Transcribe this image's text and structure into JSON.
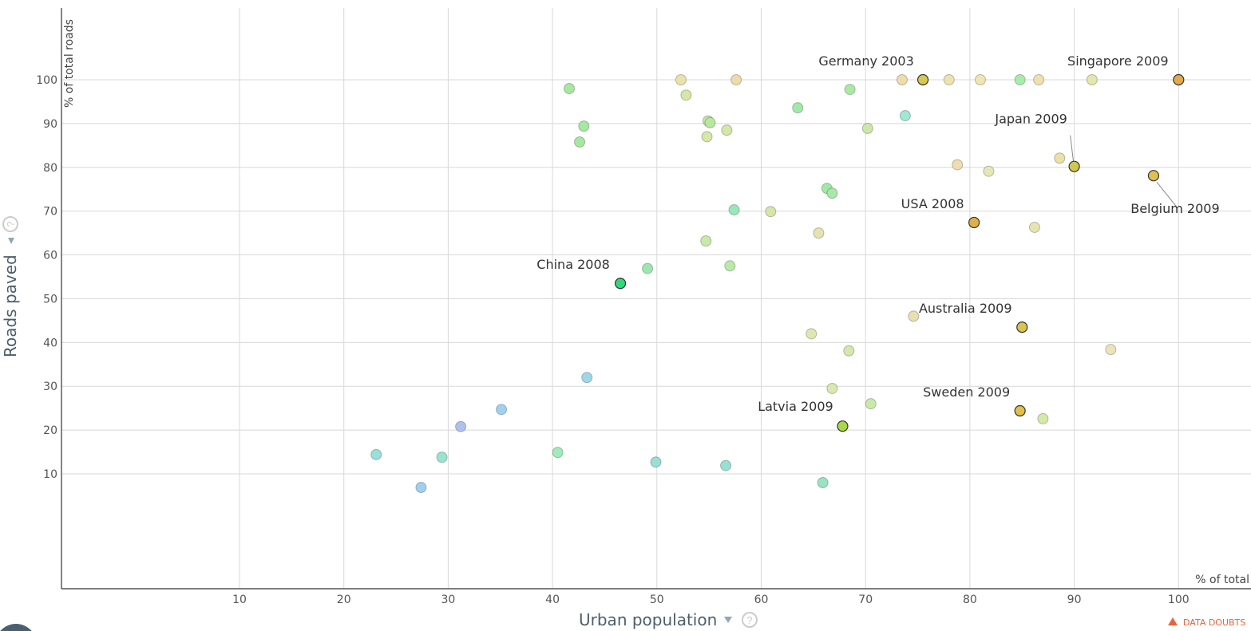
{
  "chart_data": {
    "type": "scatter",
    "xlabel": "Urban population",
    "xunit": "% of total",
    "ylabel": "Roads paved",
    "yunit": "% of total roads",
    "xlim": [
      0,
      106
    ],
    "ylim": [
      -16,
      116
    ],
    "xticks": [
      10,
      20,
      30,
      40,
      50,
      60,
      70,
      80,
      90,
      100
    ],
    "yticks": [
      10,
      20,
      30,
      40,
      50,
      60,
      70,
      80,
      90,
      100
    ],
    "grid": true,
    "data_doubts_label": "DATA DOUBTS",
    "points": [
      {
        "x": 41.6,
        "y": 98.0,
        "color": "#a6e8a0"
      },
      {
        "x": 52.3,
        "y": 100,
        "color": "#e8e4a8"
      },
      {
        "x": 57.6,
        "y": 100,
        "color": "#ecdcaa"
      },
      {
        "x": 52.8,
        "y": 96.5,
        "color": "#d6e6a4"
      },
      {
        "x": 43.0,
        "y": 89.4,
        "color": "#a6e8a0"
      },
      {
        "x": 42.6,
        "y": 85.8,
        "color": "#a6e8a0"
      },
      {
        "x": 54.9,
        "y": 90.6,
        "color": "#c6e8a0"
      },
      {
        "x": 55.1,
        "y": 90.2,
        "color": "#b8e8a0"
      },
      {
        "x": 54.8,
        "y": 87.0,
        "color": "#d4e8a8"
      },
      {
        "x": 56.7,
        "y": 88.5,
        "color": "#d0e8a8"
      },
      {
        "x": 63.5,
        "y": 93.6,
        "color": "#a0eaa8"
      },
      {
        "x": 68.5,
        "y": 97.8,
        "color": "#aaeaa4"
      },
      {
        "x": 70.2,
        "y": 88.9,
        "color": "#cce8a8"
      },
      {
        "x": 73.8,
        "y": 91.8,
        "color": "#9ee8d4"
      },
      {
        "x": 73.5,
        "y": 100,
        "color": "#f0dcaa"
      },
      {
        "x": 75.5,
        "y": 100,
        "color": "#d8c850",
        "label": "Germany 2003"
      },
      {
        "x": 78.0,
        "y": 100,
        "color": "#ece4ac"
      },
      {
        "x": 81.0,
        "y": 100,
        "color": "#eee6b0"
      },
      {
        "x": 84.8,
        "y": 100,
        "color": "#a6ecaa"
      },
      {
        "x": 86.6,
        "y": 100,
        "color": "#efe0b0"
      },
      {
        "x": 91.7,
        "y": 100,
        "color": "#e4e6aa"
      },
      {
        "x": 100,
        "y": 100,
        "color": "#e4aa48",
        "label": "Singapore 2009"
      },
      {
        "x": 78.8,
        "y": 80.6,
        "color": "#f0dcb0"
      },
      {
        "x": 81.8,
        "y": 79.1,
        "color": "#e4e8b4"
      },
      {
        "x": 88.6,
        "y": 82.1,
        "color": "#ecdfa8"
      },
      {
        "x": 90.0,
        "y": 80.2,
        "color": "#cfc850",
        "label": "Japan 2009"
      },
      {
        "x": 97.6,
        "y": 78.1,
        "color": "#e0c050",
        "label": "Belgium 2009"
      },
      {
        "x": 80.4,
        "y": 67.4,
        "color": "#e0b048",
        "label": "USA 2008"
      },
      {
        "x": 86.2,
        "y": 66.3,
        "color": "#e6e4b0"
      },
      {
        "x": 66.3,
        "y": 75.2,
        "color": "#a0eaa8"
      },
      {
        "x": 66.8,
        "y": 74.1,
        "color": "#a8e8a8"
      },
      {
        "x": 57.4,
        "y": 70.3,
        "color": "#98e8b8"
      },
      {
        "x": 60.9,
        "y": 69.9,
        "color": "#d4e6a8"
      },
      {
        "x": 65.5,
        "y": 65.0,
        "color": "#e4e4b0"
      },
      {
        "x": 54.7,
        "y": 63.2,
        "color": "#c8eaa8"
      },
      {
        "x": 57.0,
        "y": 57.5,
        "color": "#b8eaa8"
      },
      {
        "x": 49.1,
        "y": 56.9,
        "color": "#9ae8b0"
      },
      {
        "x": 46.5,
        "y": 53.5,
        "color": "#30d878",
        "label": "China 2008"
      },
      {
        "x": 74.6,
        "y": 46.0,
        "color": "#e8e0b0"
      },
      {
        "x": 85.0,
        "y": 43.5,
        "color": "#d8c450",
        "label": "Australia 2009"
      },
      {
        "x": 93.5,
        "y": 38.4,
        "color": "#ece4b8"
      },
      {
        "x": 64.8,
        "y": 42.0,
        "color": "#dce8b0"
      },
      {
        "x": 68.4,
        "y": 38.1,
        "color": "#d4e8aa"
      },
      {
        "x": 43.3,
        "y": 32.0,
        "color": "#9ed8e8"
      },
      {
        "x": 66.8,
        "y": 29.5,
        "color": "#d8e8b0"
      },
      {
        "x": 70.5,
        "y": 26.0,
        "color": "#c8eaa8"
      },
      {
        "x": 84.8,
        "y": 24.4,
        "color": "#e0c048",
        "label": "Sweden 2009"
      },
      {
        "x": 87.0,
        "y": 22.6,
        "color": "#d4eaa8"
      },
      {
        "x": 67.8,
        "y": 20.9,
        "color": "#a8d848",
        "label": "Latvia 2009"
      },
      {
        "x": 35.1,
        "y": 24.7,
        "color": "#a0d0f0"
      },
      {
        "x": 31.2,
        "y": 20.8,
        "color": "#b0c0ec"
      },
      {
        "x": 23.1,
        "y": 14.4,
        "color": "#98e0d8"
      },
      {
        "x": 29.4,
        "y": 13.8,
        "color": "#98e4d0"
      },
      {
        "x": 40.5,
        "y": 14.9,
        "color": "#a0ecb8"
      },
      {
        "x": 49.9,
        "y": 12.7,
        "color": "#98e0d4"
      },
      {
        "x": 56.6,
        "y": 11.9,
        "color": "#98e0d4"
      },
      {
        "x": 65.9,
        "y": 8.0,
        "color": "#98e4c0"
      },
      {
        "x": 27.4,
        "y": 6.9,
        "color": "#a0d0f0"
      }
    ]
  }
}
